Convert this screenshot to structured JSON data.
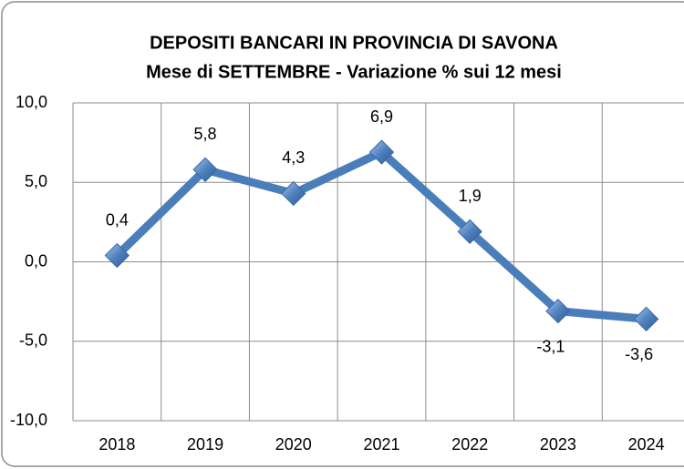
{
  "chart_data": {
    "type": "line",
    "title": "DEPOSITI BANCARI IN PROVINCIA DI SAVONA",
    "subtitle": "Mese di SETTEMBRE  - Variazione % sui 12 mesi",
    "categories": [
      "2018",
      "2019",
      "2020",
      "2021",
      "2022",
      "2023",
      "2024"
    ],
    "values": [
      0.4,
      5.8,
      4.3,
      6.9,
      1.9,
      -3.1,
      -3.6
    ],
    "value_labels": [
      "0,4",
      "5,8",
      "4,3",
      "6,9",
      "1,9",
      "-3,1",
      "-3,6"
    ],
    "color": "#4a7ebb",
    "ylim": [
      -10,
      10
    ],
    "yticks": [
      {
        "value": -10,
        "label": "-10,0"
      },
      {
        "value": -5,
        "label": "-5,0"
      },
      {
        "value": 0,
        "label": "0,0"
      },
      {
        "value": 5,
        "label": "5,0"
      },
      {
        "value": 10,
        "label": "10,0"
      }
    ],
    "grid": true
  }
}
